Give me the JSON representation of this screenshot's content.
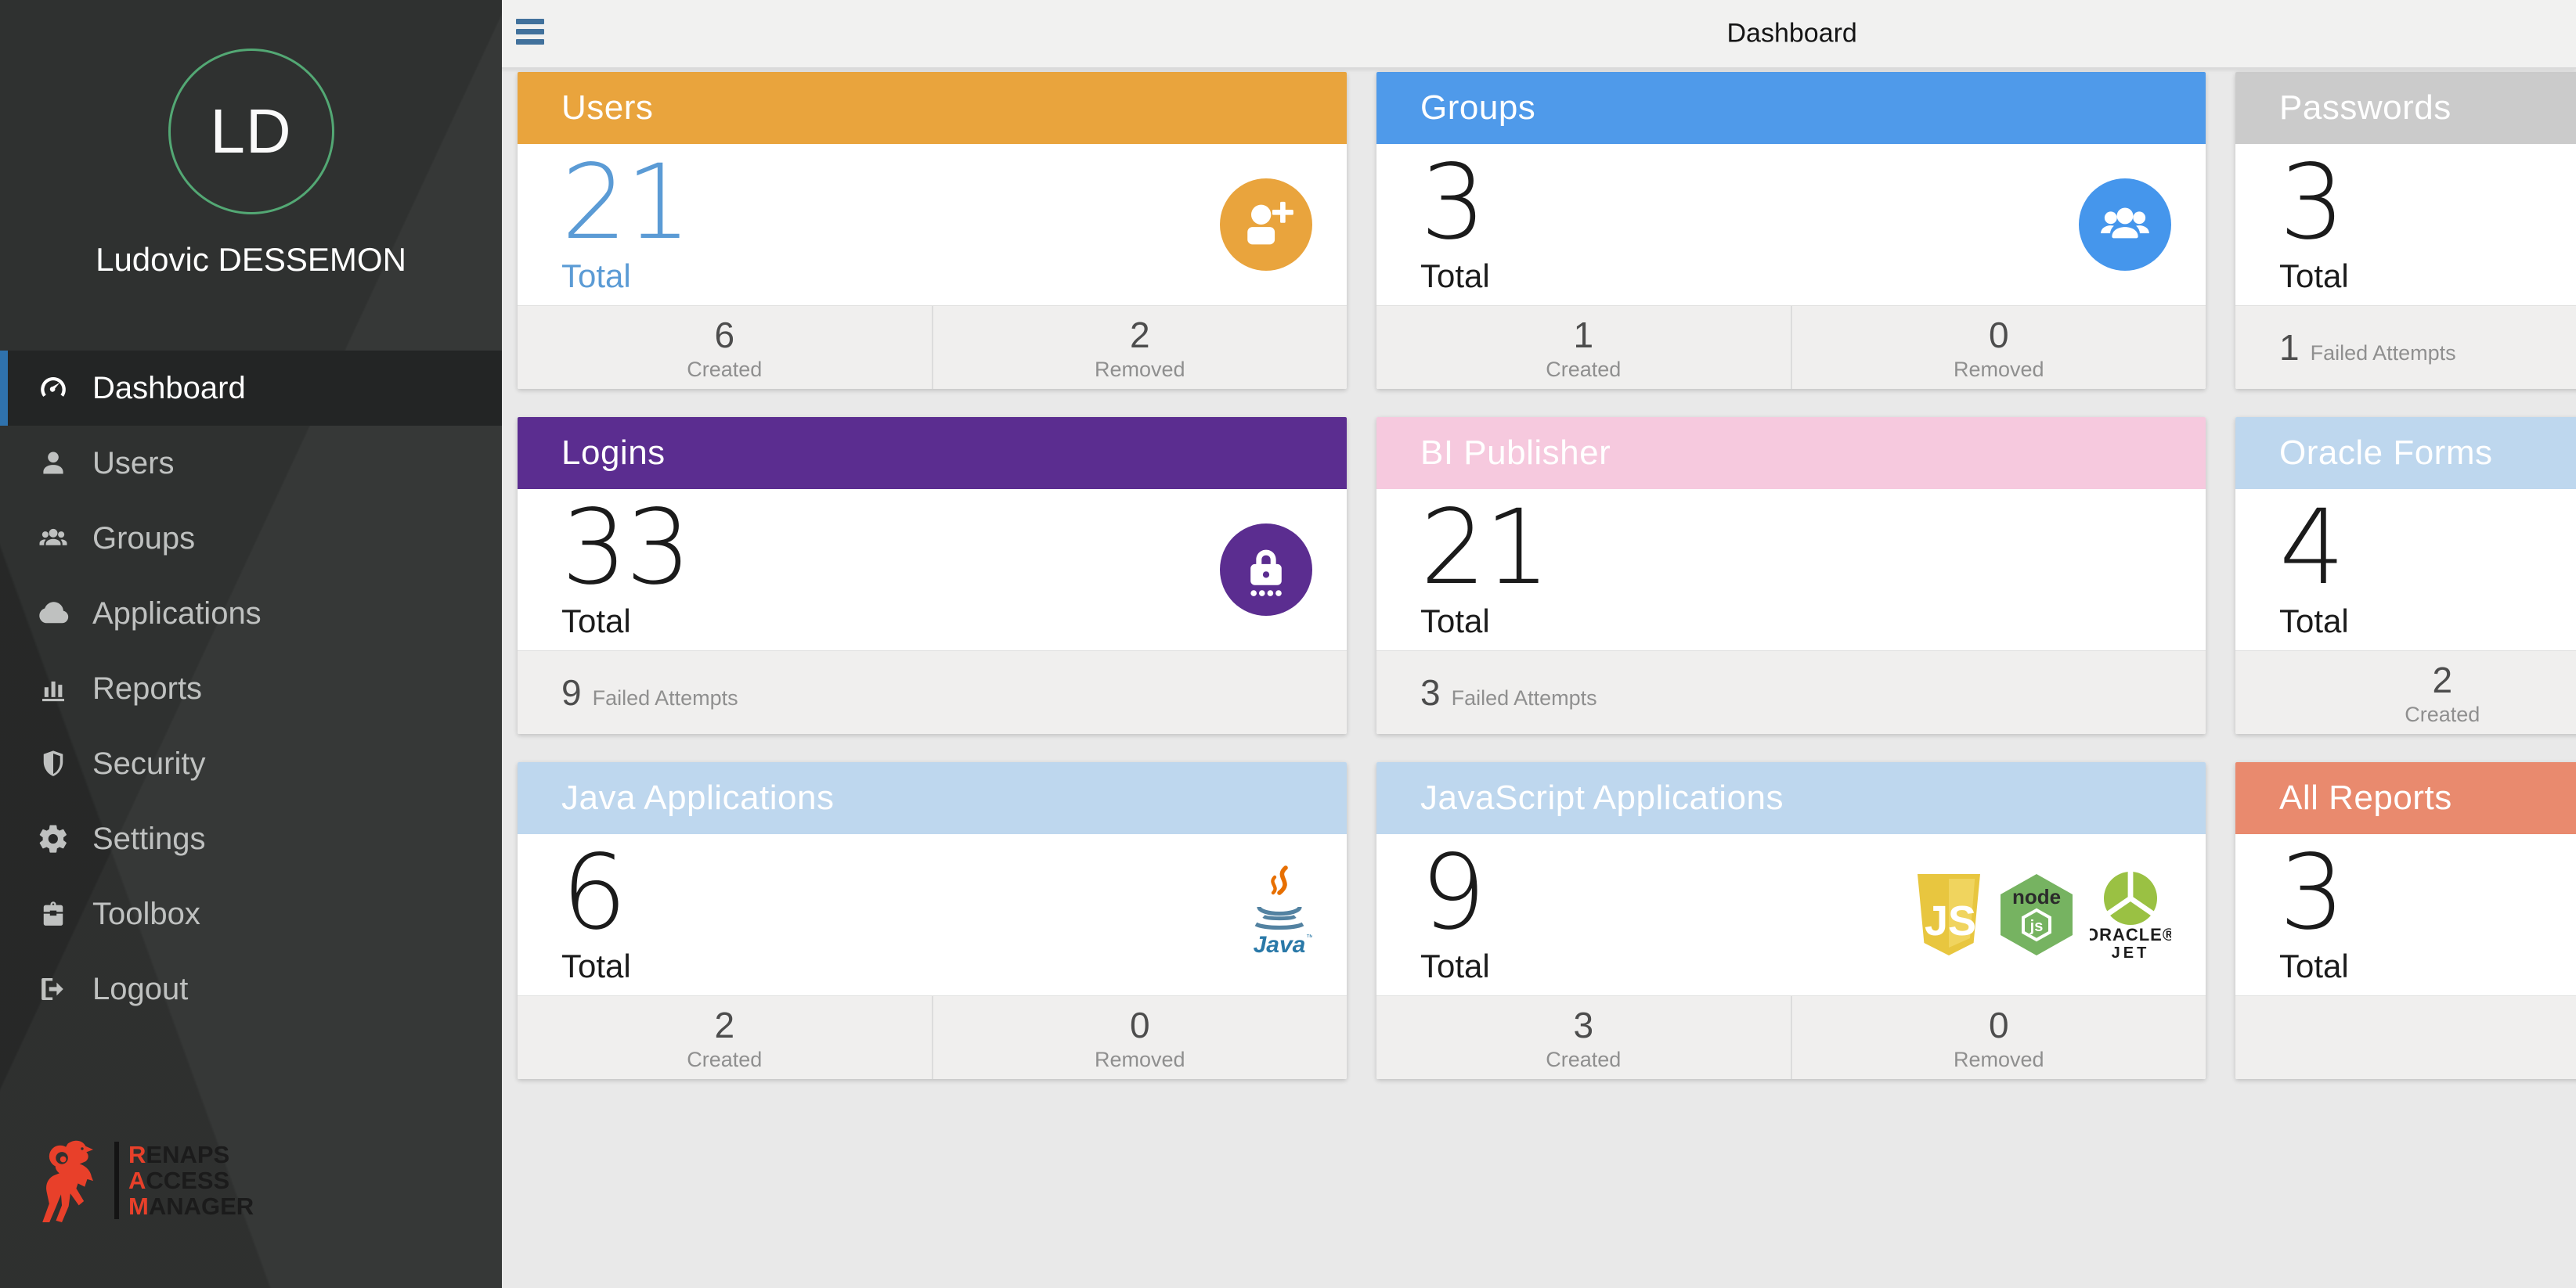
{
  "header": {
    "title": "Dashboard"
  },
  "sidebar": {
    "avatar_initials": "LD",
    "user_name": "Ludovic DESSEMON",
    "items": [
      {
        "id": "dashboard",
        "label": "Dashboard",
        "icon": "gauge-icon",
        "active": true
      },
      {
        "id": "users",
        "label": "Users",
        "icon": "user-icon",
        "active": false
      },
      {
        "id": "groups",
        "label": "Groups",
        "icon": "users-icon",
        "active": false
      },
      {
        "id": "applications",
        "label": "Applications",
        "icon": "cloud-icon",
        "active": false
      },
      {
        "id": "reports",
        "label": "Reports",
        "icon": "bar-chart-icon",
        "active": false
      },
      {
        "id": "security",
        "label": "Security",
        "icon": "shield-icon",
        "active": false
      },
      {
        "id": "settings",
        "label": "Settings",
        "icon": "gear-icon",
        "active": false
      },
      {
        "id": "toolbox",
        "label": "Toolbox",
        "icon": "toolbox-icon",
        "active": false
      },
      {
        "id": "logout",
        "label": "Logout",
        "icon": "logout-icon",
        "active": false
      }
    ],
    "logo": {
      "icon": "ram-icon",
      "accent_color": "#e8402a",
      "lines": [
        {
          "first": "R",
          "rest": "ENAPS"
        },
        {
          "first": "A",
          "rest": "CCESS"
        },
        {
          "first": "M",
          "rest": "ANAGER"
        }
      ]
    }
  },
  "colors": {
    "sidebar_bg": "#2f3130",
    "active_item_border": "#2f72ad",
    "hamburger": "#41719c",
    "avatar_ring": "#53a874",
    "users_accent": "#5b9bd5"
  },
  "cards": [
    {
      "id": "users",
      "title": "Users",
      "header_color": "#e9a43d",
      "total": "21",
      "total_label": "Total",
      "value_color": "#5b9bd5",
      "icons": [
        {
          "name": "user-plus-icon",
          "bg": "#e9a43d"
        }
      ],
      "footer": {
        "type": "cells",
        "cells": [
          {
            "value": "6",
            "label": "Created"
          },
          {
            "value": "2",
            "label": "Removed"
          }
        ]
      }
    },
    {
      "id": "groups",
      "title": "Groups",
      "header_color": "#4f9aea",
      "total": "3",
      "total_label": "Total",
      "value_color": "#1b1b1b",
      "icons": [
        {
          "name": "user-group-icon",
          "bg": "#4596ec"
        }
      ],
      "footer": {
        "type": "cells",
        "cells": [
          {
            "value": "1",
            "label": "Created"
          },
          {
            "value": "0",
            "label": "Removed"
          }
        ]
      }
    },
    {
      "id": "passwords",
      "title": "Passwords",
      "header_color": "#cbcbcb",
      "total": "3",
      "total_label": "Total",
      "value_color": "#1b1b1b",
      "icons": [],
      "footer": {
        "type": "inline",
        "cells": [
          {
            "value": "1",
            "label": "Failed Attempts"
          }
        ]
      }
    },
    {
      "id": "logins",
      "title": "Logins",
      "header_color": "#5b2d90",
      "total": "33",
      "total_label": "Total",
      "value_color": "#1b1b1b",
      "icons": [
        {
          "name": "lock-icon",
          "bg": "#5b2d90"
        }
      ],
      "footer": {
        "type": "inline",
        "cells": [
          {
            "value": "9",
            "label": "Failed Attempts"
          }
        ]
      }
    },
    {
      "id": "bi-publisher",
      "title": "BI Publisher",
      "header_color": "#f6c9de",
      "total": "21",
      "total_label": "Total",
      "value_color": "#1b1b1b",
      "icons": [],
      "footer": {
        "type": "inline",
        "cells": [
          {
            "value": "3",
            "label": "Failed Attempts"
          }
        ]
      }
    },
    {
      "id": "oracle-forms",
      "title": "Oracle Forms",
      "header_color": "#bed7ee",
      "total": "4",
      "total_label": "Total",
      "value_color": "#1b1b1b",
      "icons": [],
      "footer": {
        "type": "cells",
        "cells": [
          {
            "value": "2",
            "label": "Created"
          },
          {
            "value": "",
            "label": ""
          }
        ]
      }
    },
    {
      "id": "java-applications",
      "title": "Java Applications",
      "header_color": "#bed7ee",
      "total": "6",
      "total_label": "Total",
      "value_color": "#1b1b1b",
      "icons": [
        {
          "name": "java-logo-icon"
        }
      ],
      "footer": {
        "type": "cells",
        "cells": [
          {
            "value": "2",
            "label": "Created"
          },
          {
            "value": "0",
            "label": "Removed"
          }
        ]
      }
    },
    {
      "id": "javascript-applications",
      "title": "JavaScript Applications",
      "header_color": "#bed7ee",
      "total": "9",
      "total_label": "Total",
      "value_color": "#1b1b1b",
      "icons": [
        {
          "name": "js-logo-icon"
        },
        {
          "name": "nodejs-logo-icon"
        },
        {
          "name": "oracle-jet-logo-icon"
        }
      ],
      "footer": {
        "type": "cells",
        "cells": [
          {
            "value": "3",
            "label": "Created"
          },
          {
            "value": "0",
            "label": "Removed"
          }
        ]
      }
    },
    {
      "id": "all-reports",
      "title": "All Reports",
      "header_color": "#e98a6e",
      "total": "3",
      "total_label": "Total",
      "value_color": "#1b1b1b",
      "icons": [],
      "footer": {
        "type": "empty",
        "cells": []
      }
    }
  ]
}
